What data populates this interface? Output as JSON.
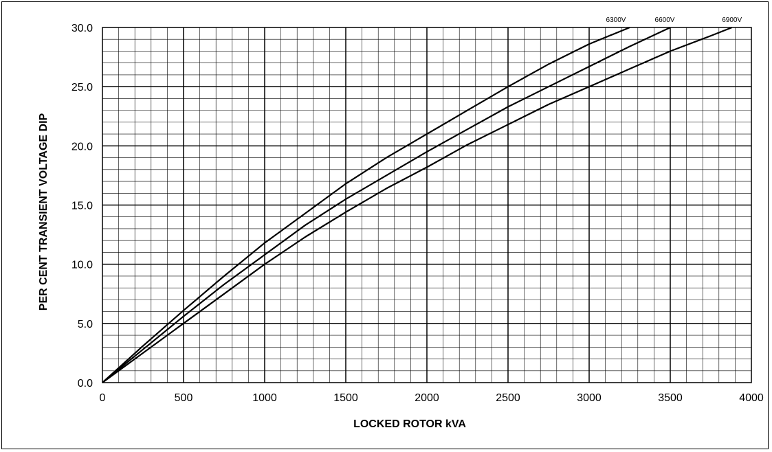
{
  "chart_data": {
    "type": "line",
    "title": "",
    "xlabel": "LOCKED ROTOR kVA",
    "ylabel": "PER CENT TRANSIENT VOLTAGE DIP",
    "xlim": [
      0,
      4000
    ],
    "ylim": [
      0,
      30
    ],
    "x_ticks": [
      "0",
      "500",
      "1000",
      "1500",
      "2000",
      "2500",
      "3000",
      "3500",
      "4000"
    ],
    "y_ticks": [
      "0.0",
      "5.0",
      "10.0",
      "15.0",
      "20.0",
      "25.0",
      "30.0"
    ],
    "x_major_step": 500,
    "x_minor_step": 100,
    "y_major_step": 5,
    "y_minor_step": 1,
    "grid": true,
    "legend": "curve labels at top-right end of each line",
    "series": [
      {
        "name": "6300V",
        "x": [
          0,
          250,
          500,
          750,
          1000,
          1250,
          1500,
          1750,
          2000,
          2250,
          2500,
          2750,
          3000,
          3250
        ],
        "y": [
          0,
          3.1,
          6.1,
          9.0,
          11.8,
          14.3,
          16.8,
          19.0,
          21.0,
          23.0,
          25.0,
          26.9,
          28.6,
          30.0
        ]
      },
      {
        "name": "6600V",
        "x": [
          0,
          250,
          500,
          750,
          1000,
          1250,
          1500,
          1750,
          2000,
          2250,
          2500,
          2750,
          3000,
          3250,
          3500
        ],
        "y": [
          0,
          2.8,
          5.6,
          8.3,
          10.8,
          13.3,
          15.5,
          17.5,
          19.5,
          21.4,
          23.3,
          25.0,
          26.7,
          28.4,
          30.0
        ]
      },
      {
        "name": "6900V",
        "x": [
          0,
          250,
          500,
          750,
          1000,
          1250,
          1500,
          1750,
          2000,
          2250,
          2500,
          2750,
          3000,
          3250,
          3500,
          3750,
          3880
        ],
        "y": [
          0,
          2.5,
          5.0,
          7.5,
          10.0,
          12.3,
          14.4,
          16.4,
          18.2,
          20.1,
          21.8,
          23.5,
          25.0,
          26.5,
          28.0,
          29.3,
          30.0
        ]
      }
    ],
    "line_color": "#000000",
    "grid_color": "#000000"
  }
}
